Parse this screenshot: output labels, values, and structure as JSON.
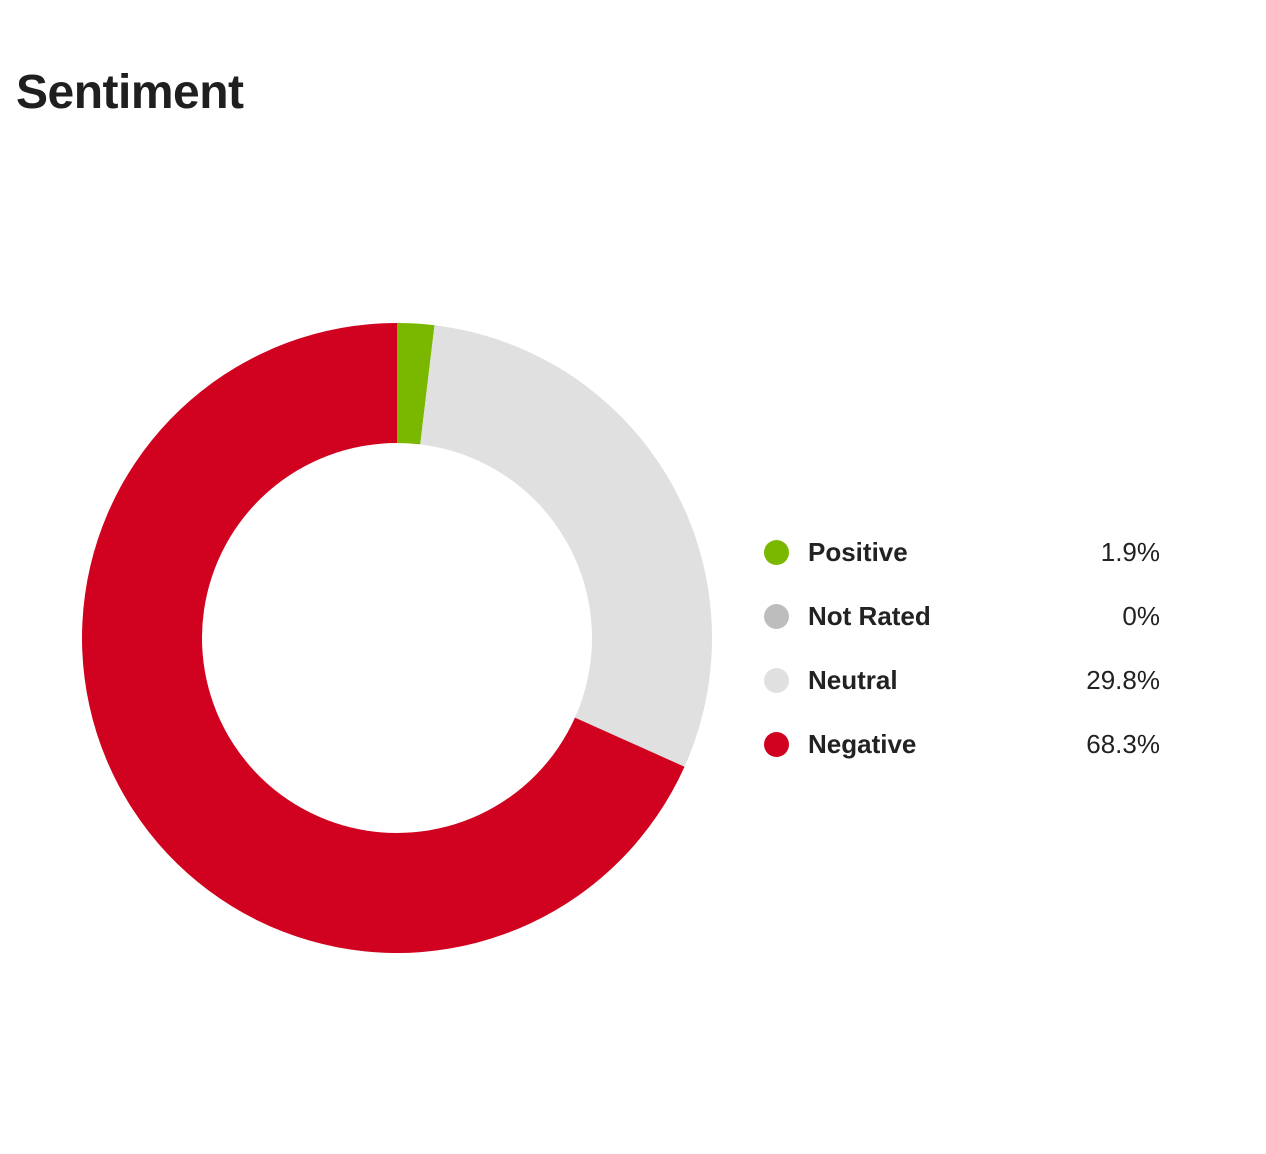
{
  "chart_data": {
    "type": "pie",
    "title": "Sentiment",
    "legend_position": "right",
    "slices": [
      {
        "label": "Positive",
        "value": 1.9,
        "value_label": "1.9%",
        "color": "#7ab800"
      },
      {
        "label": "Not Rated",
        "value": 0,
        "value_label": "0%",
        "color": "#bdbdbd"
      },
      {
        "label": "Neutral",
        "value": 29.8,
        "value_label": "29.8%",
        "color": "#e0e0e0"
      },
      {
        "label": "Negative",
        "value": 68.3,
        "value_label": "68.3%",
        "color": "#d0021f"
      }
    ]
  }
}
